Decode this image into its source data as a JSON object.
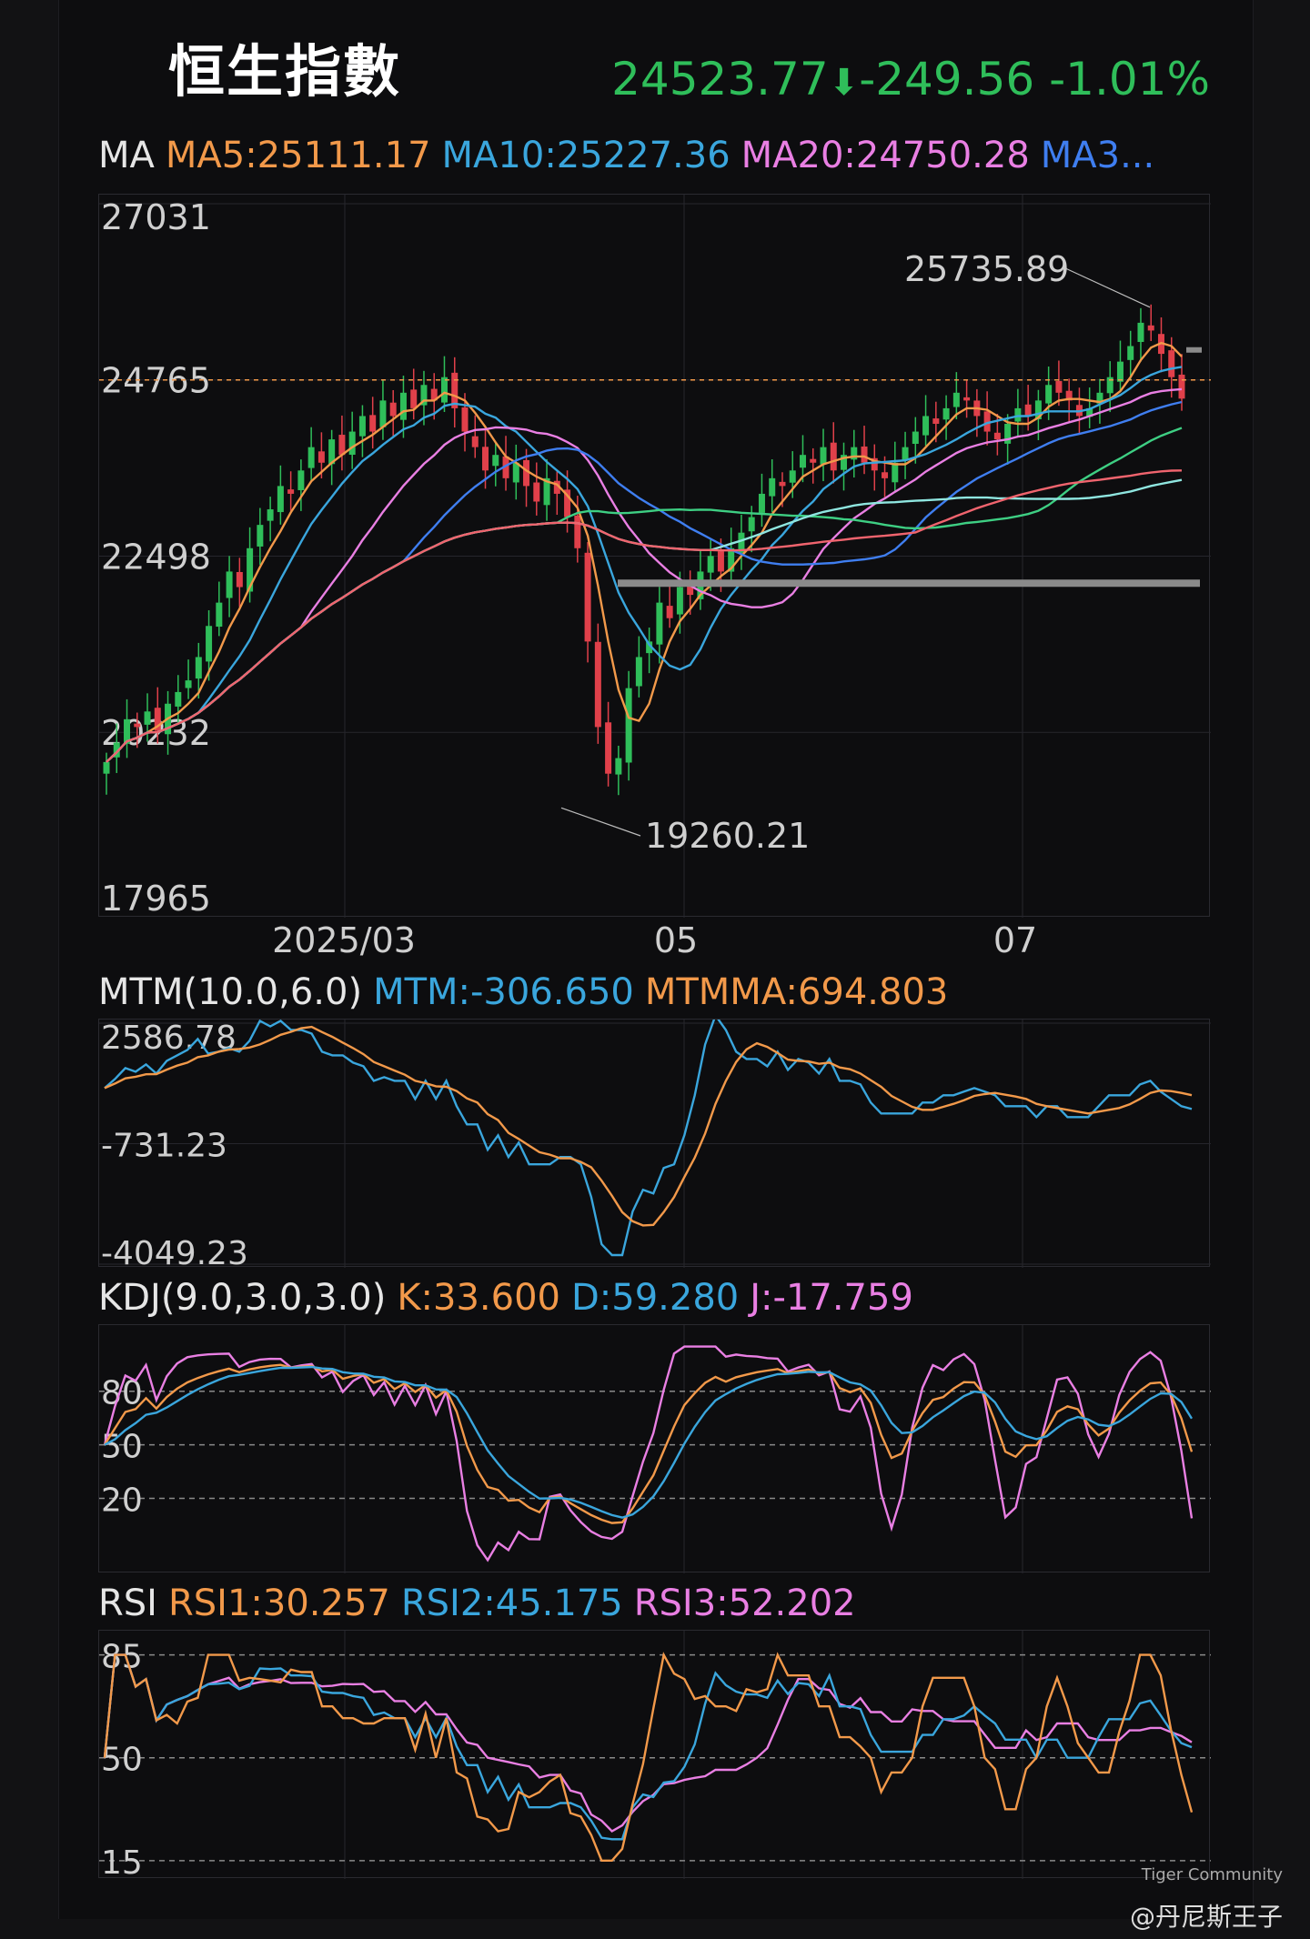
{
  "header": {
    "title": "恒生指數",
    "price": "24523.77",
    "change": "-249.56",
    "change_pct": "-1.01%",
    "direction_icon": "down-arrow-icon"
  },
  "ma_legend": {
    "label": "MA",
    "ma5": "MA5:25111.17",
    "ma10": "MA10:25227.36",
    "ma20": "MA20:24750.28",
    "ma30": "MA3..."
  },
  "colors": {
    "up": "#2fbe5a",
    "down": "#e0404a",
    "ma5": "#f2994a",
    "ma10": "#3aa6dd",
    "ma20": "#e97fe3",
    "ma30": "#3f7ef0",
    "ma60": "#3ecf83",
    "ma120": "#8fe6e0",
    "ma250": "#f0646e"
  },
  "mtm_legend": {
    "label": "MTM(10.0,6.0)",
    "mtm": "MTM:-306.650",
    "mtmma": "MTMMA:694.803"
  },
  "kdj_legend": {
    "label": "KDJ(9.0,3.0,3.0)",
    "k": "K:33.600",
    "d": "D:59.280",
    "j": "J:-17.759"
  },
  "rsi_legend": {
    "label": "RSI",
    "rsi1": "RSI1:30.257",
    "rsi2": "RSI2:45.175",
    "rsi3": "RSI3:52.202"
  },
  "chart_data": [
    {
      "type": "candlestick",
      "title": "恒生指數",
      "y_ticks": [
        "27031",
        "24765",
        "22498",
        "20232",
        "17965"
      ],
      "ylim": [
        17965,
        27031
      ],
      "x_ticks": [
        "2025/03",
        "05",
        "07"
      ],
      "annotations": {
        "high": "25735.89",
        "low": "19260.21"
      },
      "current_line": 24765,
      "support_line": 22150,
      "close": [
        19850,
        20100,
        20400,
        20300,
        20500,
        20250,
        20600,
        20750,
        20900,
        21200,
        21600,
        21900,
        22300,
        22100,
        22600,
        22900,
        23100,
        23400,
        23300,
        23600,
        23900,
        23700,
        24000,
        23800,
        24100,
        24300,
        24100,
        24500,
        24300,
        24600,
        24400,
        24700,
        24500,
        24800,
        24400,
        24100,
        23900,
        23600,
        23800,
        23500,
        23700,
        23400,
        23200,
        23500,
        23300,
        23000,
        22600,
        21400,
        20300,
        19700,
        19900,
        20800,
        21200,
        21400,
        21900,
        21700,
        22100,
        22000,
        22300,
        22500,
        22300,
        22600,
        22800,
        23000,
        23300,
        23500,
        23400,
        23600,
        23800,
        23700,
        23900,
        23600,
        23800,
        23900,
        23700,
        23600,
        23500,
        23700,
        23900,
        24100,
        24300,
        24200,
        24400,
        24600,
        24500,
        24300,
        24100,
        24000,
        24200,
        24400,
        24300,
        24500,
        24700,
        24600,
        24500,
        24300,
        24400,
        24600,
        24800,
        25000,
        25200,
        25500,
        25400,
        25100,
        24800,
        24524
      ],
      "ma_values": {
        "MA5": 25111.17,
        "MA10": 25227.36,
        "MA20": 24750.28
      }
    },
    {
      "type": "line",
      "title": "MTM(10.0,6.0)",
      "y_ticks": [
        "2586.78",
        "-731.23",
        "-4049.23"
      ],
      "ylim": [
        -4049.23,
        2586.78
      ],
      "series": [
        {
          "name": "MTM",
          "last": -306.65
        },
        {
          "name": "MTMMA",
          "last": 694.803
        }
      ]
    },
    {
      "type": "line",
      "title": "KDJ(9.0,3.0,3.0)",
      "y_ticks": [
        "80",
        "50",
        "20"
      ],
      "ylim": [
        -20,
        115
      ],
      "series": [
        {
          "name": "K",
          "last": 33.6
        },
        {
          "name": "D",
          "last": 59.28
        },
        {
          "name": "J",
          "last": -17.759
        }
      ]
    },
    {
      "type": "line",
      "title": "RSI",
      "y_ticks": [
        "85",
        "50",
        "15"
      ],
      "ylim": [
        10,
        92
      ],
      "series": [
        {
          "name": "RSI1",
          "last": 30.257
        },
        {
          "name": "RSI2",
          "last": 45.175
        },
        {
          "name": "RSI3",
          "last": 52.202
        }
      ]
    }
  ],
  "watermark": {
    "brand": "Tiger Community",
    "author": "@丹尼斯王子"
  }
}
